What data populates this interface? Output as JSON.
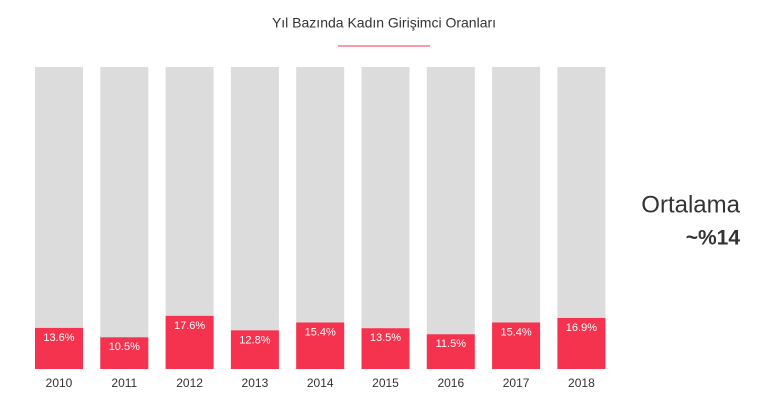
{
  "chart_data": {
    "type": "bar",
    "title": "Yıl Bazında Kadın Girişimci Oranları",
    "categories": [
      "2010",
      "2011",
      "2012",
      "2013",
      "2014",
      "2015",
      "2016",
      "2017",
      "2018"
    ],
    "values": [
      13.6,
      10.5,
      17.6,
      12.8,
      15.4,
      13.5,
      11.5,
      15.4,
      16.9
    ],
    "value_labels": [
      "13.6%",
      "10.5%",
      "17.6%",
      "12.8%",
      "15.4%",
      "13.5%",
      "11.5%",
      "15.4%",
      "16.9%"
    ],
    "color": "#f5334f",
    "background_color": "#dcdcdc",
    "ylim": [
      0,
      100
    ],
    "annotations": [
      "Ortalama",
      "~%14"
    ]
  }
}
